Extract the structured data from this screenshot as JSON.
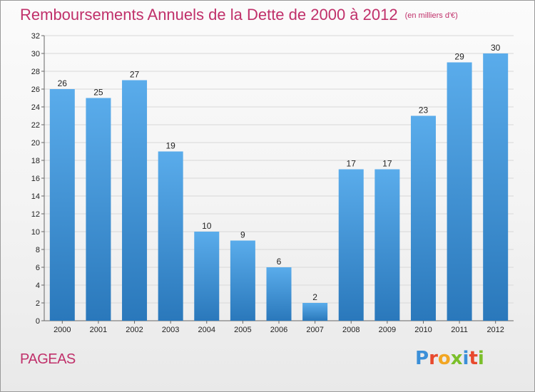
{
  "title": "Remboursements Annuels de la Dette de 2000 à 2012",
  "title_unit": "(en milliers d'€)",
  "commune": "PAGEAS",
  "logo": {
    "letters": [
      "P",
      "r",
      "o",
      "x",
      "i",
      "t",
      "i"
    ],
    "colors": [
      "#3b8fd8",
      "#e8492d",
      "#f2a623",
      "#7bbf2a",
      "#3b8fd8",
      "#e8492d",
      "#7bbf2a"
    ]
  },
  "colors": {
    "bar_light": "#5aaceb",
    "bar_dark": "#2a78bb",
    "title": "#c0306a"
  },
  "chart_data": {
    "type": "bar",
    "title": "Remboursements Annuels de la Dette de 2000 à 2012",
    "categories": [
      "2000",
      "2001",
      "2002",
      "2003",
      "2004",
      "2005",
      "2006",
      "2007",
      "2008",
      "2009",
      "2010",
      "2011",
      "2012"
    ],
    "values": [
      26,
      25,
      27,
      19,
      10,
      9,
      6,
      2,
      17,
      17,
      23,
      29,
      30
    ],
    "ylim": [
      0,
      32
    ],
    "yticks": [
      0,
      2,
      4,
      6,
      8,
      10,
      12,
      14,
      16,
      18,
      20,
      22,
      24,
      26,
      28,
      30,
      32
    ],
    "grid": true,
    "xlabel": "",
    "ylabel": ""
  }
}
